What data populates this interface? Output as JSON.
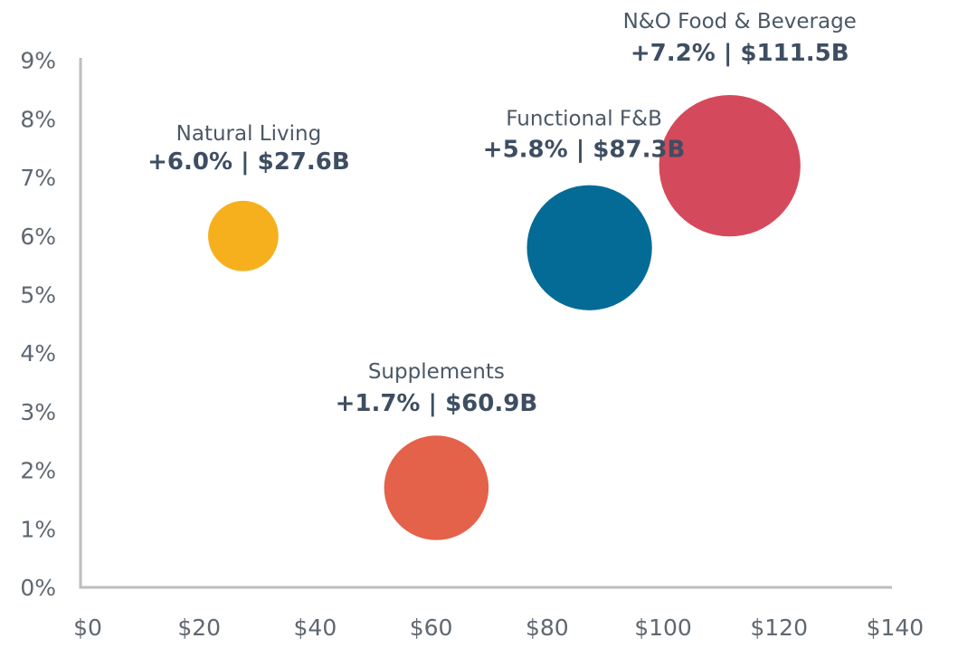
{
  "chart_data": {
    "type": "scatter",
    "subtype": "bubble",
    "title": "",
    "xlabel": "",
    "ylabel": "",
    "xlim": [
      0,
      140
    ],
    "ylim": [
      0,
      9
    ],
    "grid": false,
    "x_ticks": [
      "$0",
      "$20",
      "$40",
      "$60",
      "$80",
      "$100",
      "$120",
      "$140"
    ],
    "x_tick_values": [
      0,
      20,
      40,
      60,
      80,
      100,
      120,
      140
    ],
    "y_ticks": [
      "0%",
      "1%",
      "2%",
      "3%",
      "4%",
      "5%",
      "6%",
      "7%",
      "8%",
      "9%"
    ],
    "y_tick_values": [
      0,
      1,
      2,
      3,
      4,
      5,
      6,
      7,
      8,
      9
    ],
    "series": [
      {
        "name": "Natural Living",
        "label": "+6.0% | $27.6B",
        "x": 27.6,
        "y": 6.0,
        "size": 27.6,
        "color": "#F6B01E"
      },
      {
        "name": "Supplements",
        "label": "+1.7% | $60.9B",
        "x": 60.9,
        "y": 1.7,
        "size": 60.9,
        "color": "#E4614A"
      },
      {
        "name": "Functional F&B",
        "label": "+5.8% | $87.3B",
        "x": 87.3,
        "y": 5.8,
        "size": 87.3,
        "color": "#046B96"
      },
      {
        "name": "N&O Food & Beverage",
        "label": "+7.2% | $111.5B",
        "x": 111.5,
        "y": 7.2,
        "size": 111.5,
        "color": "#D44A5C"
      }
    ]
  }
}
